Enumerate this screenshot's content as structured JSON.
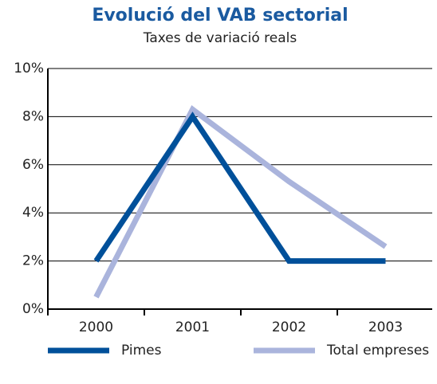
{
  "chart_data": {
    "type": "line",
    "title": "Evolució del VAB sectorial",
    "subtitle": "Taxes de variació reals",
    "categories": [
      "2000",
      "2001",
      "2002",
      "2003"
    ],
    "series": [
      {
        "name": "Pimes",
        "color": "#00509a",
        "values": [
          2.0,
          8.0,
          2.0,
          2.0
        ]
      },
      {
        "name": "Total empreses",
        "color": "#aab4dc",
        "values": [
          0.5,
          8.3,
          5.3,
          2.6
        ]
      }
    ],
    "ylim": [
      0,
      10
    ],
    "yticks": [
      {
        "value": 0,
        "label": "0%"
      },
      {
        "value": 2,
        "label": "2%"
      },
      {
        "value": 4,
        "label": "4%"
      },
      {
        "value": 6,
        "label": "6%"
      },
      {
        "value": 8,
        "label": "8%"
      },
      {
        "value": 10,
        "label": "10%"
      }
    ],
    "grid": true,
    "legend": "bottom"
  }
}
